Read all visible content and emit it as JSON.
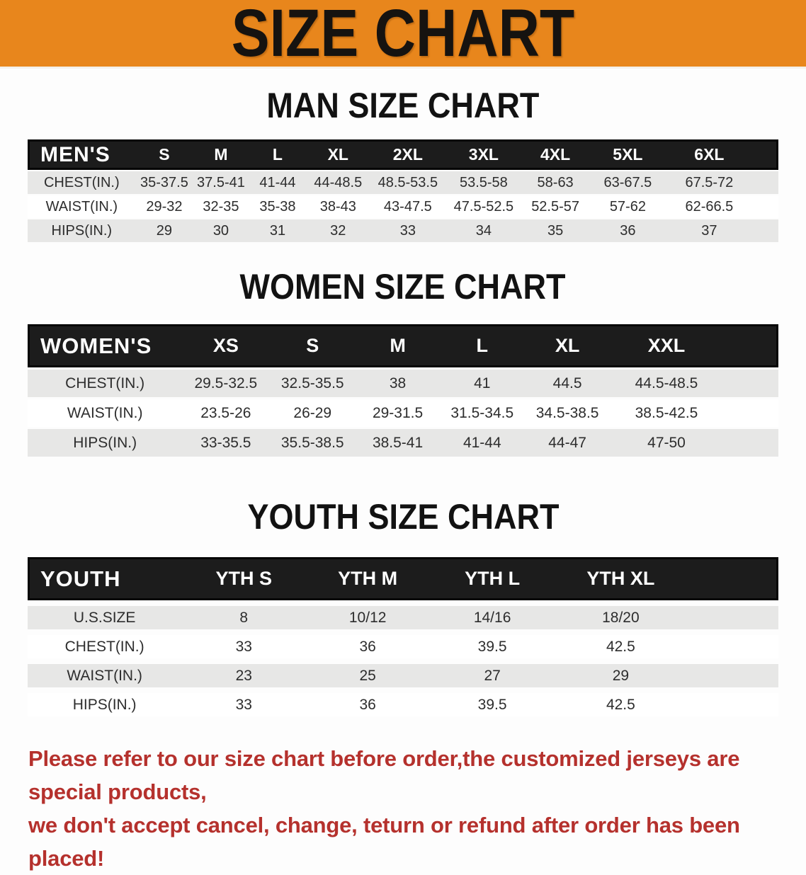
{
  "banner": {
    "title": "SIZE CHART",
    "background": "#E8861C"
  },
  "sections": [
    {
      "heading": "MAN SIZE CHART",
      "columns": [
        "MEN'S",
        "S",
        "M",
        "L",
        "XL",
        "2XL",
        "3XL",
        "4XL",
        "5XL",
        "6XL"
      ],
      "rows": [
        {
          "label": "CHEST(IN.)",
          "values": [
            "35-37.5",
            "37.5-41",
            "41-44",
            "44-48.5",
            "48.5-53.5",
            "53.5-58",
            "58-63",
            "63-67.5",
            "67.5-72"
          ]
        },
        {
          "label": "WAIST(IN.)",
          "values": [
            "29-32",
            "32-35",
            "35-38",
            "38-43",
            "43-47.5",
            "47.5-52.5",
            "52.5-57",
            "57-62",
            "62-66.5"
          ]
        },
        {
          "label": "HIPS(IN.)",
          "values": [
            "29",
            "30",
            "31",
            "32",
            "33",
            "34",
            "35",
            "36",
            "37"
          ]
        }
      ]
    },
    {
      "heading": "WOMEN SIZE CHART",
      "columns": [
        "WOMEN'S",
        "XS",
        "S",
        "M",
        "L",
        "XL",
        "XXL"
      ],
      "rows": [
        {
          "label": "CHEST(IN.)",
          "values": [
            "29.5-32.5",
            "32.5-35.5",
            "38",
            "41",
            "44.5",
            "44.5-48.5"
          ]
        },
        {
          "label": "WAIST(IN.)",
          "values": [
            "23.5-26",
            "26-29",
            "29-31.5",
            "31.5-34.5",
            "34.5-38.5",
            "38.5-42.5"
          ]
        },
        {
          "label": "HIPS(IN.)",
          "values": [
            "33-35.5",
            "35.5-38.5",
            "38.5-41",
            "41-44",
            "44-47",
            "47-50"
          ]
        }
      ]
    },
    {
      "heading": "YOUTH SIZE CHART",
      "columns": [
        "YOUTH",
        "YTH S",
        "YTH M",
        "YTH L",
        "YTH XL"
      ],
      "rows": [
        {
          "label": "U.S.SIZE",
          "values": [
            "8",
            "10/12",
            "14/16",
            "18/20"
          ]
        },
        {
          "label": "CHEST(IN.)",
          "values": [
            "33",
            "36",
            "39.5",
            "42.5"
          ]
        },
        {
          "label": "WAIST(IN.)",
          "values": [
            "23",
            "25",
            "27",
            "29"
          ]
        },
        {
          "label": "HIPS(IN.)",
          "values": [
            "33",
            "36",
            "39.5",
            "42.5"
          ]
        }
      ]
    }
  ],
  "note": {
    "color": "#B5312D",
    "lines": [
      "Please refer to our size chart before order,the customized jerseys are special products,",
      "we don't accept cancel, change, teturn or refund after order has been placed!"
    ]
  },
  "colors": {
    "header_bar": "#1C1C1C",
    "row_shaded": "#E7E7E6",
    "heading_text": "#121212"
  }
}
